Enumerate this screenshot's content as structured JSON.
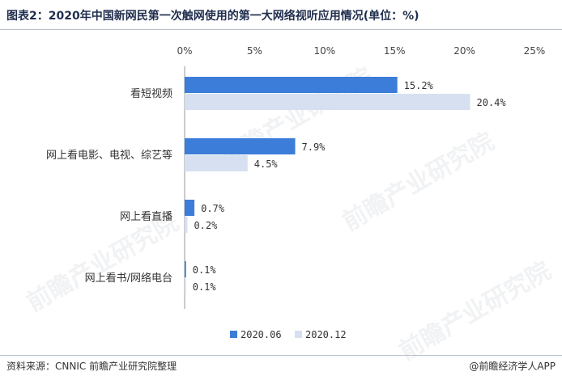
{
  "title": "图表2：2020年中国新网民第一次触网使用的第一大网络视听应用情况(单位：%)",
  "footer": {
    "source": "资料来源：CNNIC 前瞻产业研究院整理",
    "brand": "@前瞻经济学人APP"
  },
  "watermark": "前瞻产业研究院",
  "colors": {
    "series1": "#3b7dd8",
    "series2": "#d6e0f0",
    "axis_text": "#444444",
    "title": "#1f2d4d"
  },
  "chart_data": {
    "type": "bar",
    "orientation": "horizontal",
    "title": "图表2：2020年中国新网民第一次触网使用的第一大网络视听应用情况(单位：%)",
    "categories": [
      "看短视频",
      "网上看电影、电视、综艺等",
      "网上看直播",
      "网上看书/网络电台"
    ],
    "series": [
      {
        "name": "2020.06",
        "values": [
          15.2,
          7.9,
          0.7,
          0.1
        ],
        "labels": [
          "15.2%",
          "7.9%",
          "0.7%",
          "0.1%"
        ]
      },
      {
        "name": "2020.12",
        "values": [
          20.4,
          4.5,
          0.2,
          0.1
        ],
        "labels": [
          "20.4%",
          "4.5%",
          "0.2%",
          "0.1%"
        ]
      }
    ],
    "xlim": [
      0,
      25
    ],
    "xticks": [
      0,
      5,
      10,
      15,
      20,
      25
    ],
    "xtick_labels": [
      "0%",
      "5%",
      "10%",
      "15%",
      "20%",
      "25%"
    ],
    "axis_position": "top",
    "grid": false,
    "legend_position": "bottom"
  }
}
